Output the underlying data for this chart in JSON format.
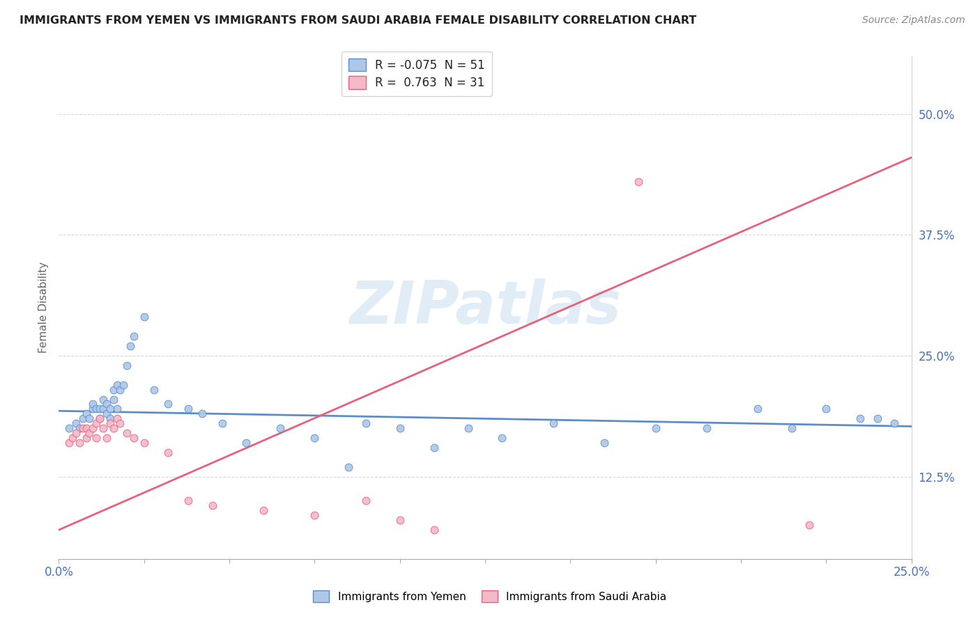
{
  "title": "IMMIGRANTS FROM YEMEN VS IMMIGRANTS FROM SAUDI ARABIA FEMALE DISABILITY CORRELATION CHART",
  "source": "Source: ZipAtlas.com",
  "ylabel": "Female Disability",
  "y_tick_labels": [
    "12.5%",
    "25.0%",
    "37.5%",
    "50.0%"
  ],
  "y_tick_values": [
    0.125,
    0.25,
    0.375,
    0.5
  ],
  "xlim": [
    0.0,
    0.25
  ],
  "ylim": [
    0.04,
    0.56
  ],
  "legend_entry1": "R = -0.075  N = 51",
  "legend_entry2": "R =  0.763  N = 31",
  "legend_label1": "Immigrants from Yemen",
  "legend_label2": "Immigrants from Saudi Arabia",
  "color_blue": "#aec6e8",
  "color_pink": "#f5b8c8",
  "color_blue_line": "#5b8ec9",
  "color_pink_line": "#e8607a",
  "color_blue_edge": "#5b8ec9",
  "color_pink_edge": "#e8607a",
  "watermark_text": "ZIPatlas",
  "watermark_color": "#c8ddf0",
  "background_color": "#ffffff",
  "grid_color": "#d8d8d8",
  "title_color": "#222222",
  "axis_label_color": "#4472c4",
  "ylabel_color": "#666666",
  "scatter_blue_x": [
    0.003,
    0.005,
    0.006,
    0.007,
    0.008,
    0.009,
    0.01,
    0.01,
    0.011,
    0.012,
    0.012,
    0.013,
    0.013,
    0.014,
    0.014,
    0.015,
    0.015,
    0.016,
    0.016,
    0.017,
    0.017,
    0.018,
    0.019,
    0.02,
    0.021,
    0.022,
    0.025,
    0.028,
    0.032,
    0.038,
    0.042,
    0.048,
    0.055,
    0.065,
    0.075,
    0.085,
    0.09,
    0.1,
    0.11,
    0.12,
    0.13,
    0.145,
    0.16,
    0.175,
    0.19,
    0.205,
    0.215,
    0.225,
    0.235,
    0.24,
    0.245
  ],
  "scatter_blue_y": [
    0.175,
    0.18,
    0.175,
    0.185,
    0.19,
    0.185,
    0.195,
    0.2,
    0.195,
    0.185,
    0.195,
    0.195,
    0.205,
    0.19,
    0.2,
    0.195,
    0.185,
    0.205,
    0.215,
    0.22,
    0.195,
    0.215,
    0.22,
    0.24,
    0.26,
    0.27,
    0.29,
    0.215,
    0.2,
    0.195,
    0.19,
    0.18,
    0.16,
    0.175,
    0.165,
    0.135,
    0.18,
    0.175,
    0.155,
    0.175,
    0.165,
    0.18,
    0.16,
    0.175,
    0.175,
    0.195,
    0.175,
    0.195,
    0.185,
    0.185,
    0.18
  ],
  "scatter_pink_x": [
    0.003,
    0.004,
    0.005,
    0.006,
    0.007,
    0.008,
    0.008,
    0.009,
    0.01,
    0.011,
    0.011,
    0.012,
    0.013,
    0.014,
    0.015,
    0.016,
    0.017,
    0.018,
    0.02,
    0.022,
    0.025,
    0.032,
    0.038,
    0.045,
    0.06,
    0.075,
    0.09,
    0.1,
    0.11,
    0.17,
    0.22
  ],
  "scatter_pink_y": [
    0.16,
    0.165,
    0.17,
    0.16,
    0.175,
    0.165,
    0.175,
    0.17,
    0.175,
    0.165,
    0.18,
    0.185,
    0.175,
    0.165,
    0.18,
    0.175,
    0.185,
    0.18,
    0.17,
    0.165,
    0.16,
    0.15,
    0.1,
    0.095,
    0.09,
    0.085,
    0.1,
    0.08,
    0.07,
    0.43,
    0.075
  ],
  "blue_line_x": [
    0.0,
    0.25
  ],
  "blue_line_y": [
    0.193,
    0.177
  ],
  "pink_line_x": [
    0.0,
    0.25
  ],
  "pink_line_y": [
    0.07,
    0.455
  ]
}
